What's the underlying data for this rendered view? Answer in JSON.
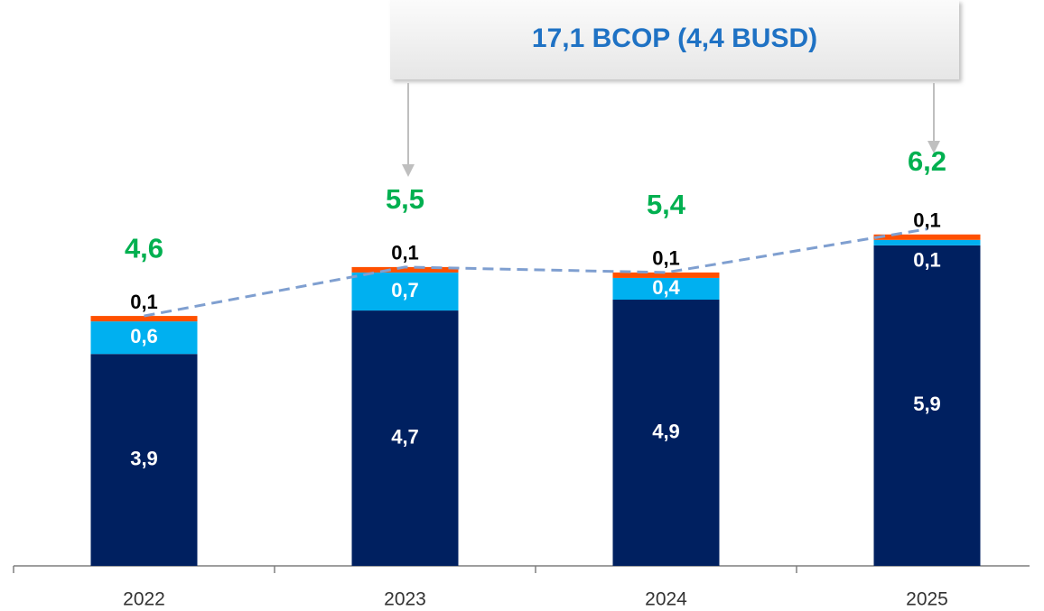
{
  "chart_data": {
    "type": "stacked_bar",
    "annotation": "17,1 BCOP (4,4 BUSD)",
    "categories": [
      "2022",
      "2023",
      "2024",
      "2025"
    ],
    "series": [
      {
        "color": "#002060",
        "values": [
          3.9,
          4.7,
          4.9,
          5.9
        ],
        "value_labels": [
          "3,9",
          "4,7",
          "4,9",
          "5,9"
        ]
      },
      {
        "color": "#00b0f0",
        "values": [
          0.6,
          0.7,
          0.4,
          0.1
        ],
        "value_labels": [
          "0,6",
          "0,7",
          "0,4",
          "0,1"
        ]
      },
      {
        "color": "#ff5000",
        "values": [
          0.1,
          0.1,
          0.1,
          0.1
        ],
        "value_labels": [
          "0,1",
          "0,1",
          "0,1",
          "0,1"
        ]
      }
    ],
    "totals": [
      4.6,
      5.5,
      5.4,
      6.2
    ],
    "total_labels": [
      "4,6",
      "5,5",
      "5,4",
      "6,2"
    ],
    "total_color": "#00b050",
    "trend_color": "#7f9fd0"
  }
}
